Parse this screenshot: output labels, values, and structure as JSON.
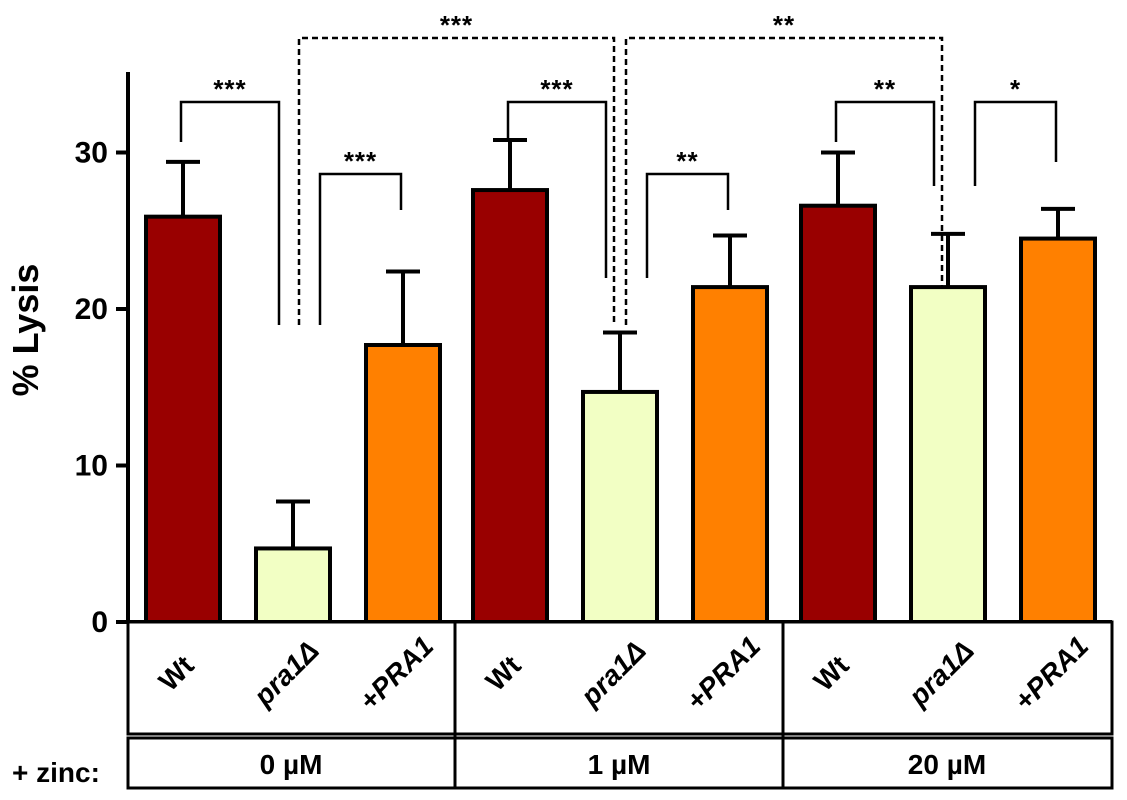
{
  "chart_data": {
    "type": "bar",
    "ylabel": "% Lysis",
    "ylim": [
      0,
      35
    ],
    "yticks": [
      "0",
      "10",
      "20",
      "30"
    ],
    "grid": false,
    "zinc_label": "+ zinc:",
    "groups": [
      {
        "label": "0 µM",
        "bars": [
          {
            "label": "Wt",
            "italic": false,
            "value": 25.9,
            "error": 3.5,
            "color": "#990000"
          },
          {
            "label": "pra1Δ",
            "italic": true,
            "value": 4.7,
            "error": 3.0,
            "color": "#f2ffc4"
          },
          {
            "label": "+PRA1",
            "italic": true,
            "value": 17.7,
            "error": 4.7,
            "color": "#ff8000"
          }
        ]
      },
      {
        "label": "1 µM",
        "bars": [
          {
            "label": "Wt",
            "italic": false,
            "value": 27.6,
            "error": 3.2,
            "color": "#990000"
          },
          {
            "label": "pra1Δ",
            "italic": true,
            "value": 14.7,
            "error": 3.8,
            "color": "#f2ffc4"
          },
          {
            "label": "+PRA1",
            "italic": true,
            "value": 21.4,
            "error": 3.3,
            "color": "#ff8000"
          }
        ]
      },
      {
        "label": "20 µM",
        "bars": [
          {
            "label": "Wt",
            "italic": false,
            "value": 26.6,
            "error": 3.4,
            "color": "#990000"
          },
          {
            "label": "pra1Δ",
            "italic": true,
            "value": 21.4,
            "error": 3.4,
            "color": "#f2ffc4"
          },
          {
            "label": "+PRA1",
            "italic": true,
            "value": 24.5,
            "error": 1.9,
            "color": "#ff8000"
          }
        ]
      }
    ],
    "significance": [
      {
        "from": [
          0,
          0
        ],
        "to": [
          0,
          1
        ],
        "label": "***",
        "dashed": false
      },
      {
        "from": [
          0,
          1
        ],
        "to": [
          0,
          2
        ],
        "label": "***",
        "dashed": false
      },
      {
        "from": [
          1,
          0
        ],
        "to": [
          1,
          1
        ],
        "label": "***",
        "dashed": false
      },
      {
        "from": [
          1,
          1
        ],
        "to": [
          1,
          2
        ],
        "label": "**",
        "dashed": false
      },
      {
        "from": [
          2,
          0
        ],
        "to": [
          2,
          1
        ],
        "label": "**",
        "dashed": false
      },
      {
        "from": [
          2,
          1
        ],
        "to": [
          2,
          2
        ],
        "label": "*",
        "dashed": false
      },
      {
        "from": [
          0,
          1
        ],
        "to": [
          1,
          1
        ],
        "label": "***",
        "dashed": true
      },
      {
        "from": [
          1,
          1
        ],
        "to": [
          2,
          1
        ],
        "label": "**",
        "dashed": true
      }
    ]
  }
}
